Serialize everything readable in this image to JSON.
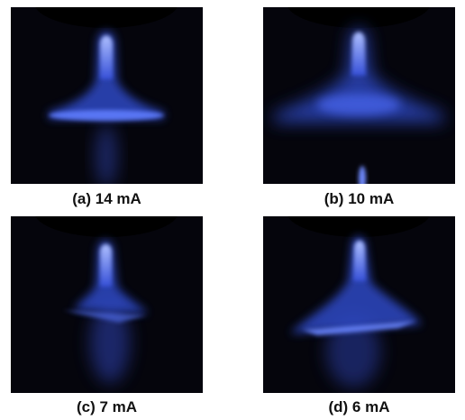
{
  "figure": {
    "panels": [
      {
        "id": "a",
        "caption": "(a) 14 mA",
        "plasma_color": "#3f5fe6"
      },
      {
        "id": "b",
        "caption": "(b) 10 mA",
        "plasma_color": "#3f5fe6"
      },
      {
        "id": "c",
        "caption": "(c) 7 mA",
        "plasma_color": "#3f5fe6"
      },
      {
        "id": "d",
        "caption": "(d) 6 mA",
        "plasma_color": "#3f5fe6"
      }
    ]
  },
  "colors": {
    "background": "#05050c",
    "glow_core": "#9fb4ff",
    "glow_mid": "#3f5fe6",
    "glow_edge": "#1a2270"
  }
}
